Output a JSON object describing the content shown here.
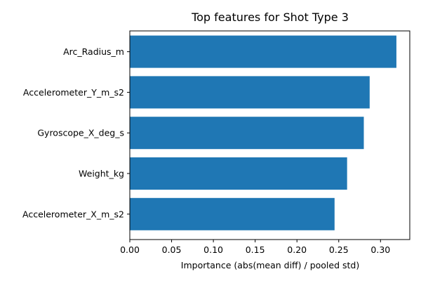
{
  "chart_data": {
    "type": "bar",
    "orientation": "horizontal",
    "title": "Top features for Shot Type 3",
    "xlabel": "Importance (abs(mean diff) / pooled std)",
    "ylabel": "",
    "categories": [
      "Arc_Radius_m",
      "Accelerometer_Y_m_s2",
      "Gyroscope_X_deg_s",
      "Weight_kg",
      "Accelerometer_X_m_s2"
    ],
    "values": [
      0.319,
      0.287,
      0.28,
      0.26,
      0.245
    ],
    "xlim": [
      0,
      0.335
    ],
    "xticks": [
      0.0,
      0.05,
      0.1,
      0.15,
      0.2,
      0.25,
      0.3
    ],
    "xtick_labels": [
      "0.00",
      "0.05",
      "0.10",
      "0.15",
      "0.20",
      "0.25",
      "0.30"
    ],
    "bar_color": "#1f77b4",
    "grid": false,
    "legend": "none"
  }
}
